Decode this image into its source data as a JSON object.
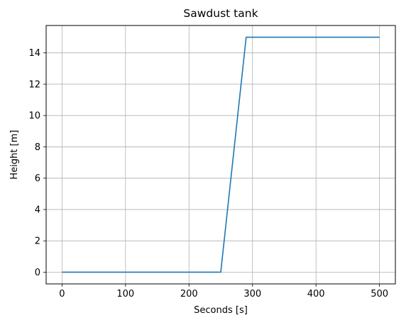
{
  "chart_data": {
    "type": "line",
    "title": "Sawdust tank",
    "xlabel": "Seconds [s]",
    "ylabel": "Height [m]",
    "xlim": [
      -25,
      525
    ],
    "ylim": [
      -0.75,
      15.75
    ],
    "xticks": [
      0,
      100,
      200,
      300,
      400,
      500
    ],
    "yticks": [
      0,
      2,
      4,
      6,
      8,
      10,
      12,
      14
    ],
    "grid": true,
    "series": [
      {
        "color": "#1f77b4",
        "x": [
          0,
          250,
          290,
          500
        ],
        "y": [
          0,
          0,
          15,
          15
        ]
      }
    ]
  }
}
